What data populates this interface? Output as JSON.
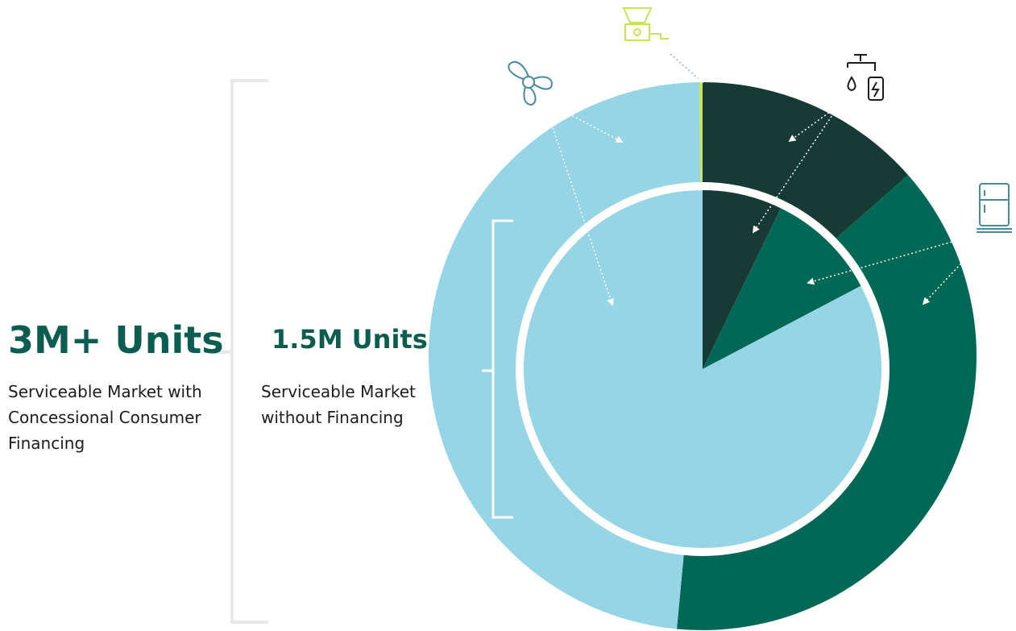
{
  "chart_data": [
    {
      "type": "pie",
      "title": "3M+ Units",
      "subtitle": "Serviceable Market with Concessional Consumer Financing",
      "categories": [
        null,
        null,
        null,
        null
      ],
      "values": [
        13.5,
        38,
        48.3,
        0.2
      ],
      "colors": [
        "#173a35",
        "#026856",
        "#95d5e5",
        "#c6e35a"
      ]
    },
    {
      "type": "pie",
      "title": "1.5M Units",
      "subtitle": "Serviceable Market without Financing",
      "categories": [
        null,
        null,
        null
      ],
      "values": [
        7.2,
        10.1,
        82.7
      ],
      "colors": [
        "#173a35",
        "#026856",
        "#95d5e5"
      ]
    }
  ]
}
